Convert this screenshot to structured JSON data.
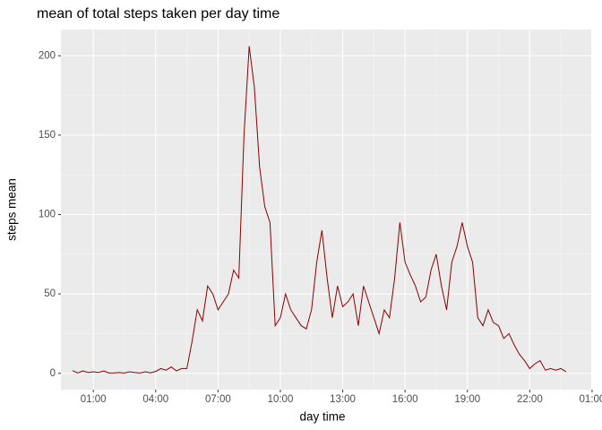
{
  "chart_data": {
    "type": "line",
    "title": "mean of total steps taken per day time",
    "x_label": "day time",
    "y_label": "steps mean",
    "x": [
      0,
      0.25,
      0.5,
      0.75,
      1,
      1.25,
      1.5,
      1.75,
      2,
      2.25,
      2.5,
      2.75,
      3,
      3.25,
      3.5,
      3.75,
      4,
      4.25,
      4.5,
      4.75,
      5,
      5.25,
      5.5,
      5.75,
      6,
      6.25,
      6.5,
      6.75,
      7,
      7.25,
      7.5,
      7.75,
      8,
      8.25,
      8.5,
      8.75,
      9,
      9.25,
      9.5,
      9.75,
      10,
      10.25,
      10.5,
      10.75,
      11,
      11.25,
      11.5,
      11.75,
      12,
      12.25,
      12.5,
      12.75,
      13,
      13.25,
      13.5,
      13.75,
      14,
      14.25,
      14.5,
      14.75,
      15,
      15.25,
      15.5,
      15.75,
      16,
      16.25,
      16.5,
      16.75,
      17,
      17.25,
      17.5,
      17.75,
      18,
      18.25,
      18.5,
      18.75,
      19,
      19.25,
      19.5,
      19.75,
      20,
      20.25,
      20.5,
      20.75,
      21,
      21.25,
      21.5,
      21.75,
      22,
      22.25,
      22.5,
      22.75,
      23,
      23.25,
      23.5,
      23.75
    ],
    "series": [
      {
        "name": "steps mean",
        "color": "#8b0000",
        "values": [
          1.7,
          0.2,
          1.5,
          0.5,
          1.0,
          0.5,
          1.5,
          0.2,
          0.3,
          0.5,
          0.2,
          1,
          0.5,
          0.2,
          1,
          0.3,
          1.2,
          3,
          2,
          4,
          1.5,
          3,
          3,
          20,
          40,
          33,
          55,
          50,
          40,
          45,
          50,
          65,
          60,
          150,
          206,
          180,
          130,
          105,
          95,
          30,
          35,
          50,
          40,
          35,
          30,
          28,
          40,
          70,
          90,
          60,
          35,
          55,
          42,
          45,
          50,
          30,
          55,
          45,
          35,
          25,
          40,
          35,
          60,
          95,
          70,
          62,
          55,
          45,
          48,
          65,
          75,
          55,
          40,
          70,
          80,
          95,
          80,
          70,
          35,
          30,
          40,
          32,
          30,
          22,
          25,
          18,
          12,
          8,
          3,
          6,
          8,
          2,
          3,
          2,
          3,
          1
        ]
      }
    ],
    "xlim": [
      -0.56,
      24.96
    ],
    "xticks": [
      {
        "value": 1,
        "label": "01:00"
      },
      {
        "value": 4,
        "label": "04:00"
      },
      {
        "value": 7,
        "label": "07:00"
      },
      {
        "value": 10,
        "label": "10:00"
      },
      {
        "value": 13,
        "label": "13:00"
      },
      {
        "value": 16,
        "label": "16:00"
      },
      {
        "value": 19,
        "label": "19:00"
      },
      {
        "value": 22,
        "label": "22:00"
      },
      {
        "value": 25,
        "label": "01:00"
      }
    ],
    "ylim": [
      -10.3,
      216.5
    ],
    "yticks": [
      0,
      50,
      100,
      150,
      200
    ],
    "grid": true
  }
}
